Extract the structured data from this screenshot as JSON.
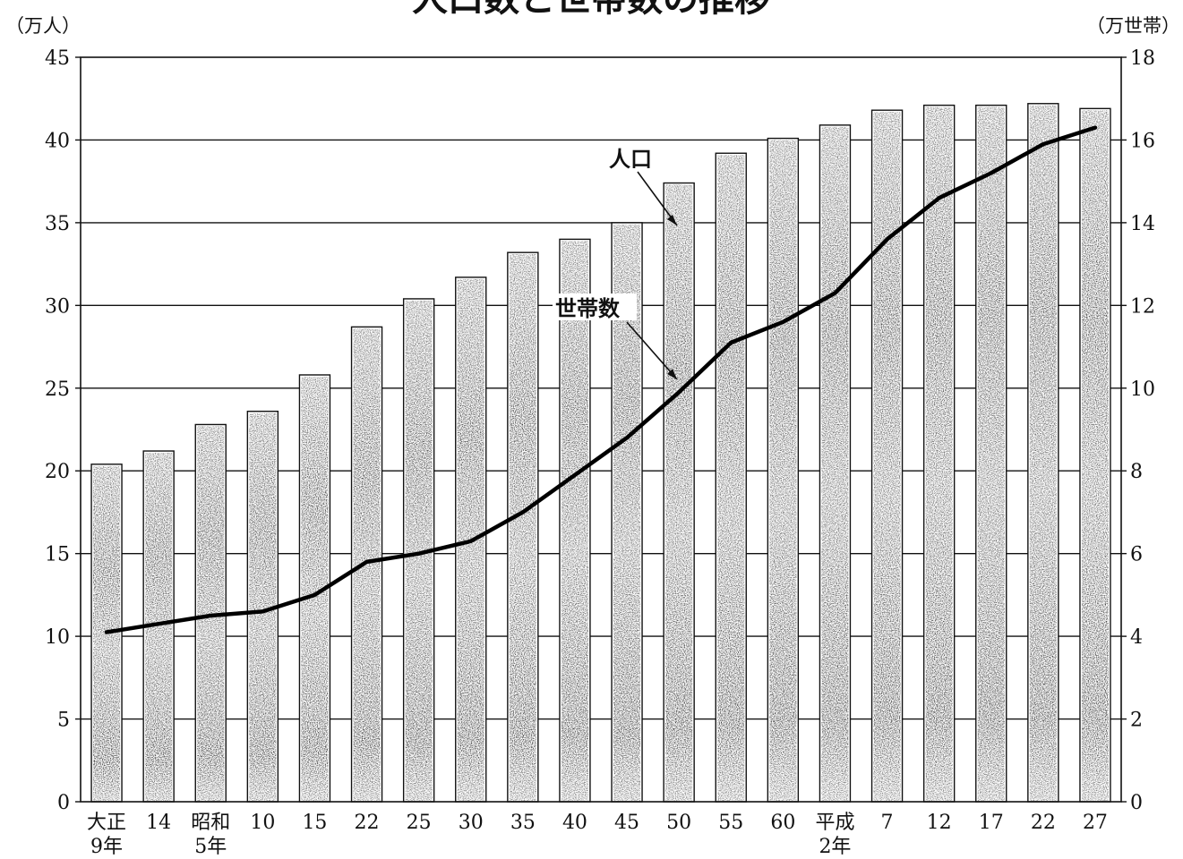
{
  "chart_data": {
    "type": "bar",
    "title": "人口数と世帯数の推移",
    "left_unit": "（万人）",
    "right_unit": "（万世帯）",
    "categories": [
      [
        "大正",
        "9年"
      ],
      [
        "14"
      ],
      [
        "昭和",
        "5年"
      ],
      [
        "10"
      ],
      [
        "15"
      ],
      [
        "22"
      ],
      [
        "25"
      ],
      [
        "30"
      ],
      [
        "35"
      ],
      [
        "40"
      ],
      [
        "45"
      ],
      [
        "50"
      ],
      [
        "55"
      ],
      [
        "60"
      ],
      [
        "平成",
        "2年"
      ],
      [
        "7"
      ],
      [
        "12"
      ],
      [
        "17"
      ],
      [
        "22"
      ],
      [
        "27"
      ]
    ],
    "left_axis": {
      "min": 0,
      "max": 45,
      "step": 5
    },
    "right_axis": {
      "min": 0,
      "max": 18,
      "step": 2
    },
    "grid": true,
    "series": [
      {
        "name": "人口",
        "kind": "bar",
        "axis": "left",
        "values": [
          20.4,
          21.2,
          22.8,
          23.6,
          25.8,
          28.7,
          30.4,
          31.7,
          33.2,
          34.0,
          35.0,
          37.4,
          39.2,
          40.1,
          40.9,
          41.8,
          42.1,
          42.1,
          42.2,
          41.9
        ]
      },
      {
        "name": "世帯数",
        "kind": "line",
        "axis": "right",
        "values": [
          4.1,
          4.3,
          4.5,
          4.6,
          5.0,
          5.8,
          6.0,
          6.3,
          7.0,
          7.9,
          8.8,
          9.9,
          11.1,
          11.6,
          12.3,
          13.6,
          14.6,
          15.2,
          15.9,
          16.3
        ]
      }
    ],
    "annotations": {
      "population_label": "人口",
      "households_label": "世帯数"
    }
  }
}
